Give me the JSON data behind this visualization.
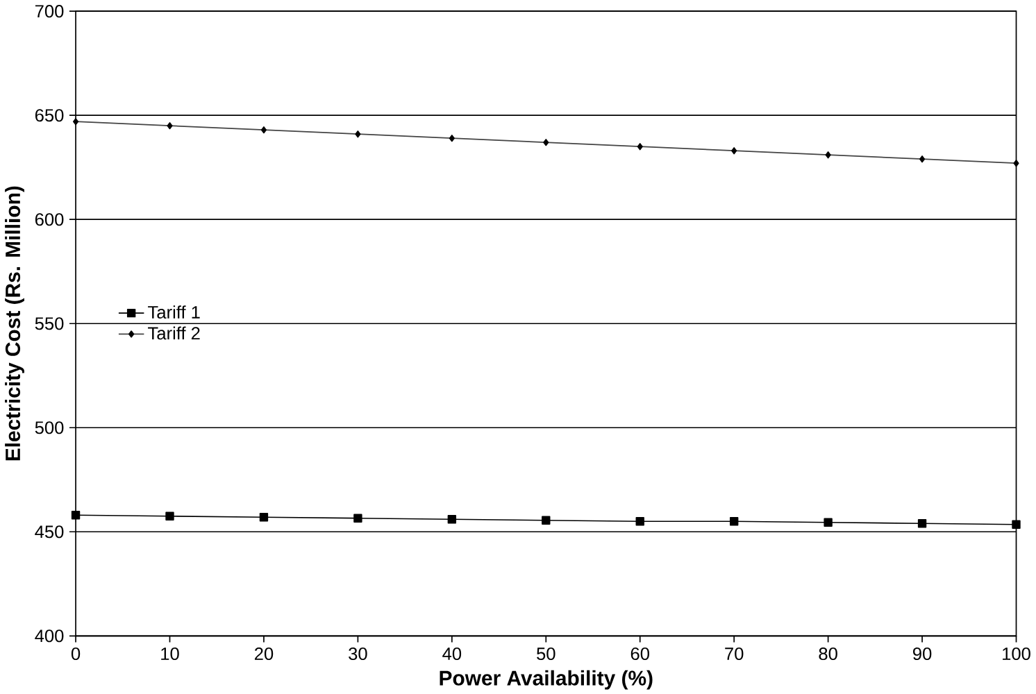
{
  "chart_data": {
    "type": "line",
    "xlabel": "Power Availability (%)",
    "ylabel": "Electricity Cost (Rs. Million)",
    "x": [
      0,
      10,
      20,
      30,
      40,
      50,
      60,
      70,
      80,
      90,
      100
    ],
    "series": [
      {
        "name": "Tariff 1",
        "color": "#000000",
        "marker": "square",
        "values": [
          458,
          457.5,
          457,
          456.5,
          456,
          455.5,
          455,
          455,
          454.5,
          454,
          453.5
        ]
      },
      {
        "name": "Tariff 2",
        "color": "#444444",
        "marker": "diamond",
        "values": [
          647,
          645,
          643,
          641,
          639,
          637,
          635,
          633,
          631,
          629,
          627
        ]
      }
    ],
    "xlim": [
      0,
      100
    ],
    "xticks": [
      0,
      10,
      20,
      30,
      40,
      50,
      60,
      70,
      80,
      90,
      100
    ],
    "ylim": [
      400,
      700
    ],
    "yticks": [
      400,
      450,
      500,
      550,
      600,
      650,
      700
    ],
    "grid": "y",
    "legend": "left",
    "line_style": "solid"
  }
}
